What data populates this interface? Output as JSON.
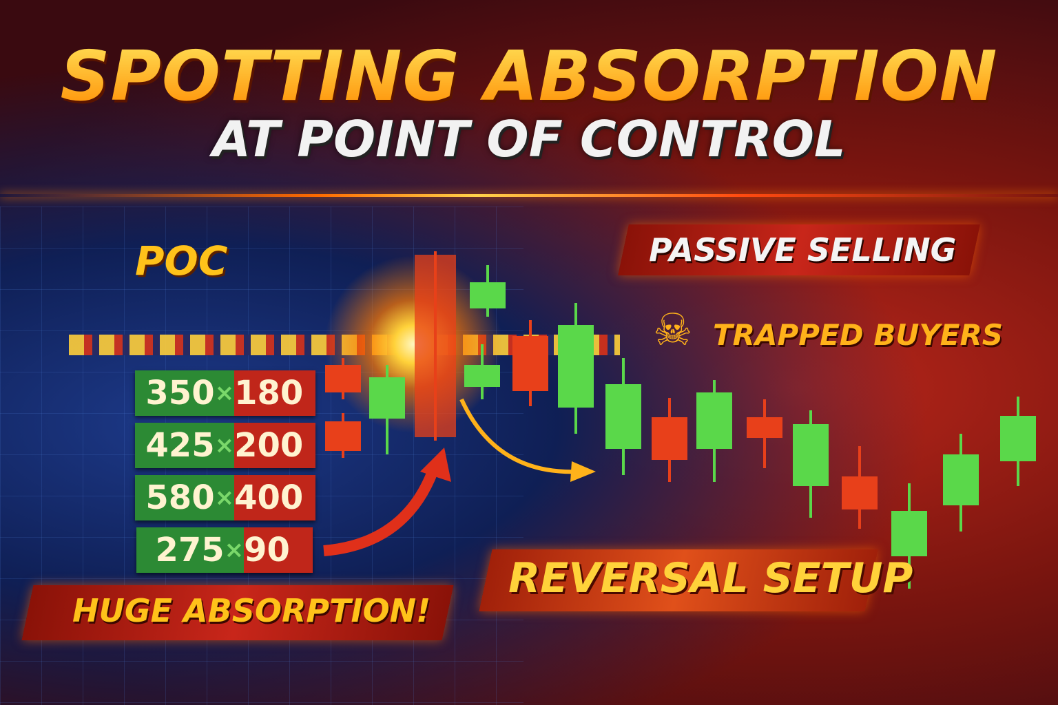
{
  "title": "SPOTTING ABSORPTION",
  "subtitle": "AT POINT OF CONTROL",
  "poc_label": "POC",
  "volume_rows": [
    {
      "buy": "350",
      "sep": "×",
      "sell": "180"
    },
    {
      "buy": "425",
      "sep": "×",
      "sell": "200"
    },
    {
      "buy": "580",
      "sep": "×",
      "sell": "400"
    },
    {
      "buy": "275",
      "sep": "×",
      "sell": "90"
    }
  ],
  "callouts": {
    "huge_absorption": "HUGE ABSORPTION!",
    "passive_selling": "PASSIVE SELLING",
    "trapped_buyers": "TRAPPED BUYERS",
    "reversal_setup": "REVERSAL SETUP"
  },
  "icons": {
    "trapped_buyers": "skull-icon"
  },
  "colors": {
    "bull": "#5ad84a",
    "bear": "#e8401a",
    "title": "#ffb21a",
    "accent": "#ffc21a"
  },
  "candles": [
    "bear",
    "bear",
    "bull",
    "bear",
    "bull",
    "bull",
    "bear",
    "bull",
    "bull",
    "bear",
    "bull",
    "bear",
    "bull",
    "bear",
    "bull",
    "bull",
    "bull"
  ]
}
